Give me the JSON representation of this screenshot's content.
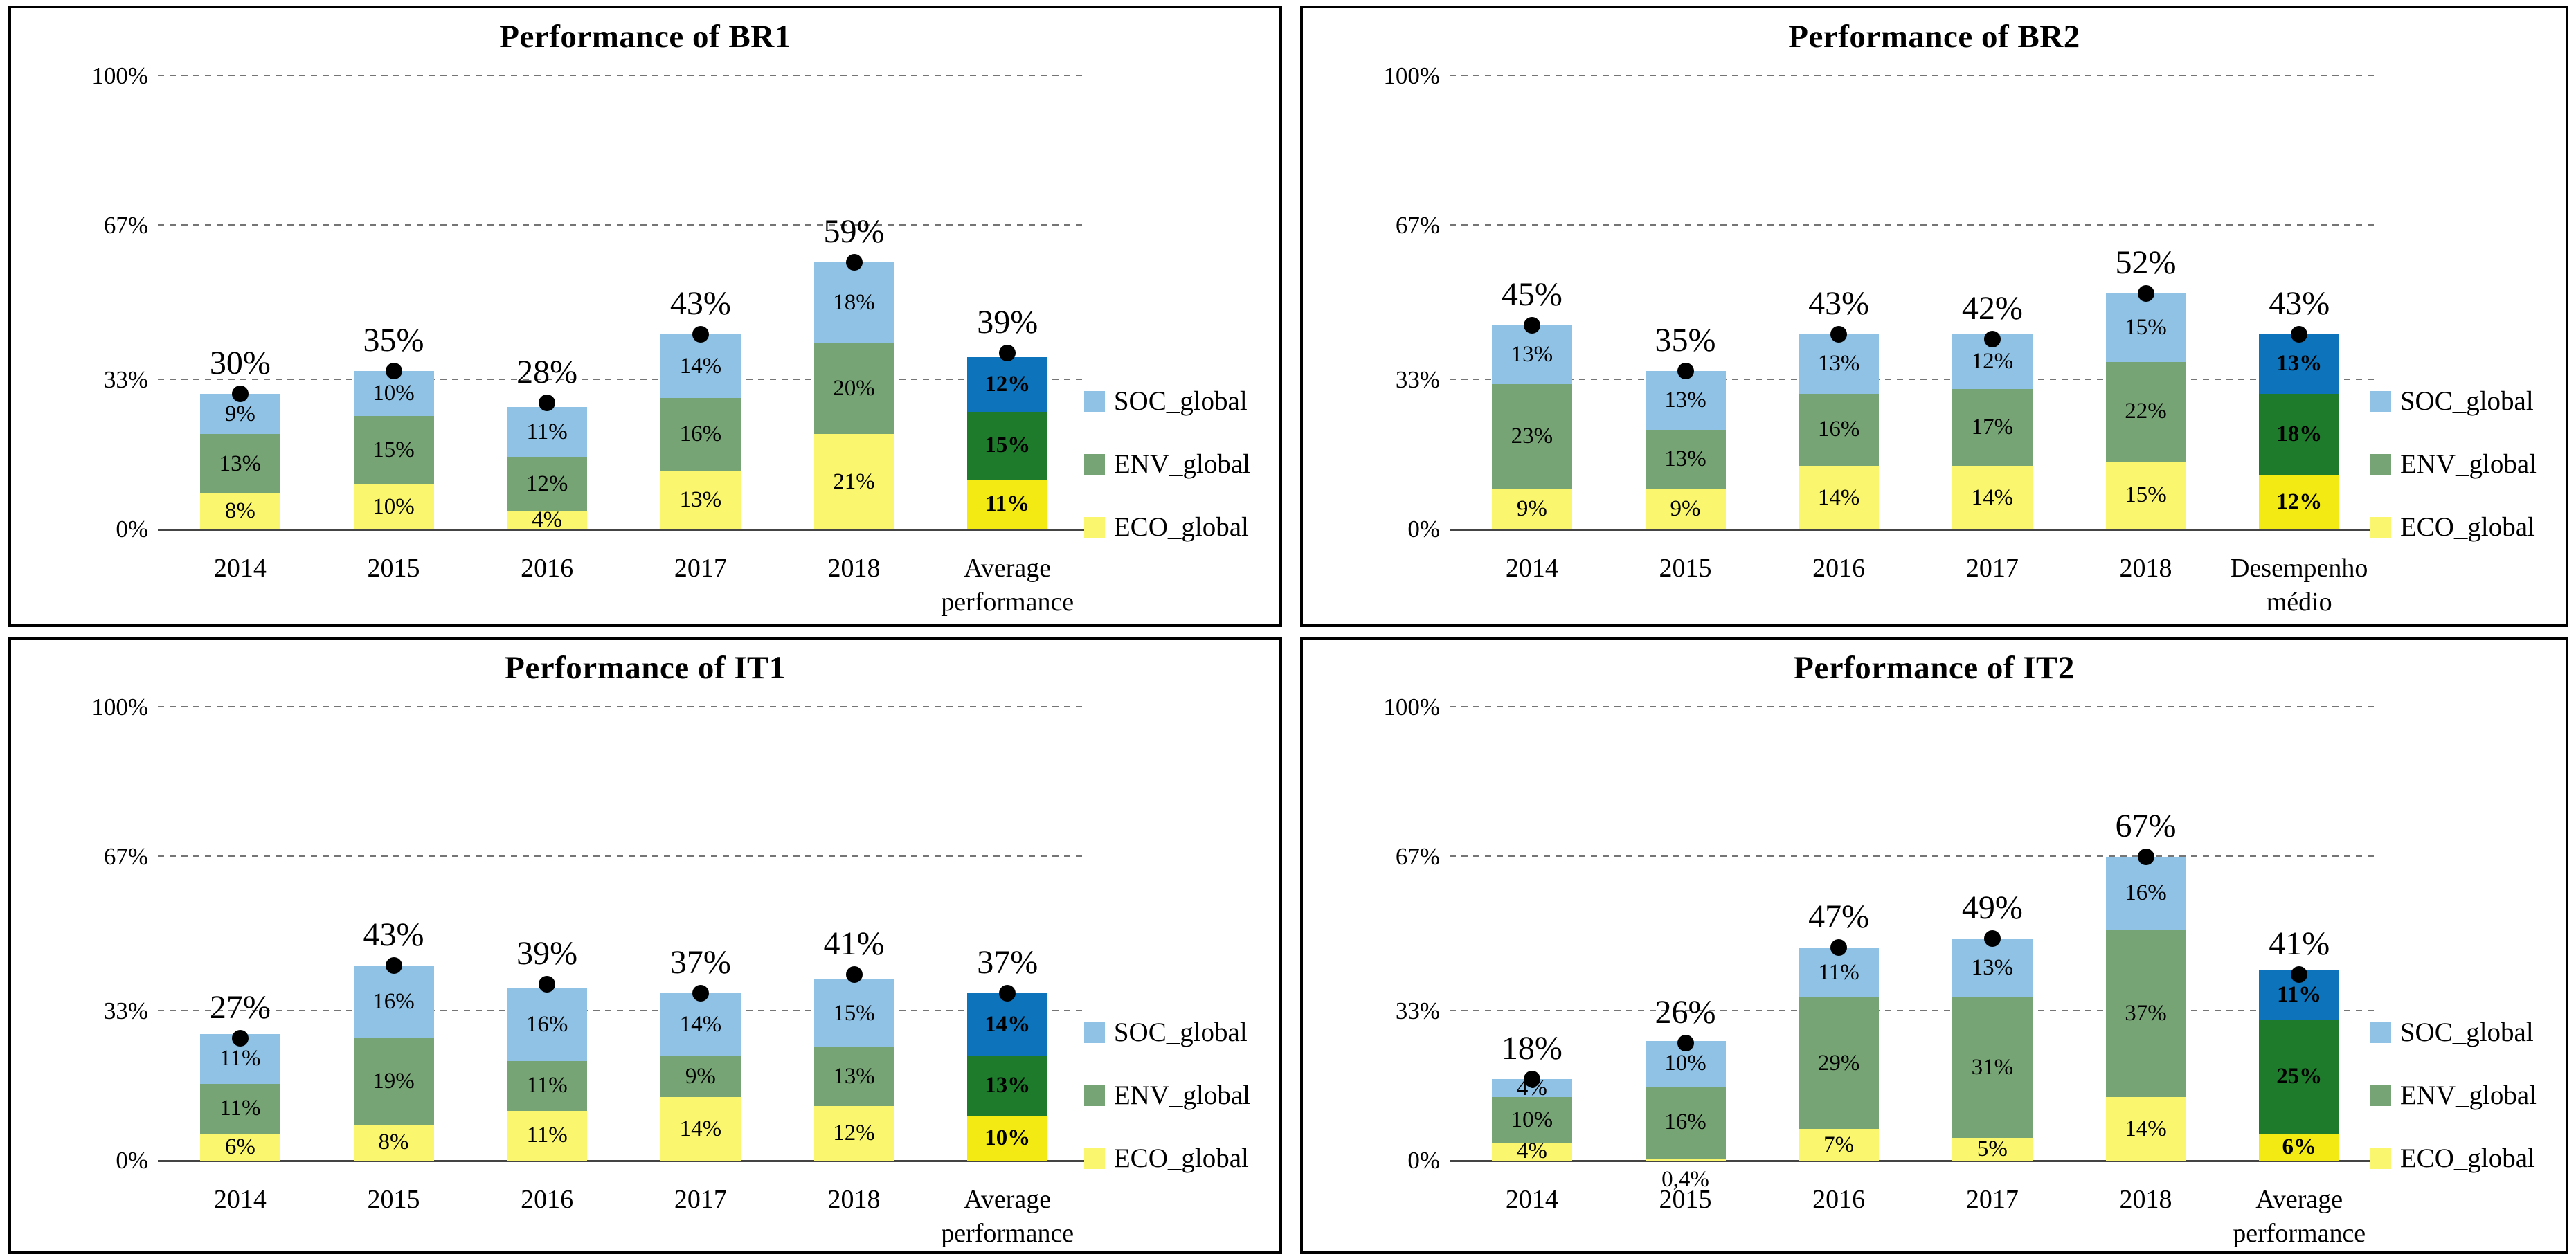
{
  "page": {
    "background": "#ffffff",
    "panel_border": "#000000"
  },
  "colors": {
    "soc_light": "#8FC2E4",
    "env_light": "#77A475",
    "eco_light": "#FAF76E",
    "soc_dark": "#0D73BB",
    "env_dark": "#1F7B2C",
    "eco_dark": "#F2EA12",
    "marker": "#000000",
    "gridline": "#757575",
    "axis": "#444444"
  },
  "chart_data": [
    {
      "type": "bar",
      "title": "Performance of BR1",
      "stacked": true,
      "ylim": [
        0,
        100
      ],
      "grid": "horizontal-dashed",
      "legend_position": "right",
      "y_ticks": [
        {
          "label": "0%",
          "value": 0
        },
        {
          "label": "33%",
          "value": 33
        },
        {
          "label": "67%",
          "value": 67
        },
        {
          "label": "100%",
          "value": 100
        }
      ],
      "categories": [
        "2014",
        "2015",
        "2016",
        "2017",
        "2018",
        "Average\nperformance"
      ],
      "series": [
        {
          "name": "ECO_global",
          "color": "#FAF76E",
          "color_avg": "#F2EA12",
          "values": [
            8,
            10,
            4,
            13,
            21,
            11
          ],
          "labels": [
            "8%",
            "10%",
            "4%",
            "13%",
            "21%",
            "11%"
          ]
        },
        {
          "name": "ENV_global",
          "color": "#77A475",
          "color_avg": "#1F7B2C",
          "values": [
            13,
            15,
            12,
            16,
            20,
            15
          ],
          "labels": [
            "13%",
            "15%",
            "12%",
            "16%",
            "20%",
            "15%"
          ]
        },
        {
          "name": "SOC_global",
          "color": "#8FC2E4",
          "color_avg": "#0D73BB",
          "values": [
            9,
            10,
            11,
            14,
            18,
            12
          ],
          "labels": [
            "9%",
            "10%",
            "11%",
            "14%",
            "18%",
            "12%"
          ]
        }
      ],
      "totals": {
        "values": [
          30,
          35,
          28,
          43,
          59,
          39
        ],
        "labels": [
          "30%",
          "35%",
          "28%",
          "43%",
          "59%",
          "39%"
        ]
      },
      "legend": [
        {
          "label": "SOC_global",
          "color": "#8FC2E4"
        },
        {
          "label": "ENV_global",
          "color": "#77A475"
        },
        {
          "label": "ECO_global",
          "color": "#FAF76E"
        }
      ]
    },
    {
      "type": "bar",
      "title": "Performance of BR2",
      "stacked": true,
      "ylim": [
        0,
        100
      ],
      "grid": "horizontal-dashed",
      "legend_position": "right",
      "y_ticks": [
        {
          "label": "0%",
          "value": 0
        },
        {
          "label": "33%",
          "value": 33
        },
        {
          "label": "67%",
          "value": 67
        },
        {
          "label": "100%",
          "value": 100
        }
      ],
      "categories": [
        "2014",
        "2015",
        "2016",
        "2017",
        "2018",
        "Desempenho\nmédio"
      ],
      "series": [
        {
          "name": "ECO_global",
          "color": "#FAF76E",
          "color_avg": "#F2EA12",
          "values": [
            9,
            9,
            14,
            14,
            15,
            12
          ],
          "labels": [
            "9%",
            "9%",
            "14%",
            "14%",
            "15%",
            "12%"
          ]
        },
        {
          "name": "ENV_global",
          "color": "#77A475",
          "color_avg": "#1F7B2C",
          "values": [
            23,
            13,
            16,
            17,
            22,
            18
          ],
          "labels": [
            "23%",
            "13%",
            "16%",
            "17%",
            "22%",
            "18%"
          ]
        },
        {
          "name": "SOC_global",
          "color": "#8FC2E4",
          "color_avg": "#0D73BB",
          "values": [
            13,
            13,
            13,
            12,
            15,
            13
          ],
          "labels": [
            "13%",
            "13%",
            "13%",
            "12%",
            "15%",
            "13%"
          ]
        }
      ],
      "totals": {
        "values": [
          45,
          35,
          43,
          42,
          52,
          43
        ],
        "labels": [
          "45%",
          "35%",
          "43%",
          "42%",
          "52%",
          "43%"
        ]
      },
      "legend": [
        {
          "label": "SOC_global",
          "color": "#8FC2E4"
        },
        {
          "label": "ENV_global",
          "color": "#77A475"
        },
        {
          "label": "ECO_global",
          "color": "#FAF76E"
        }
      ]
    },
    {
      "type": "bar",
      "title": "Performance of IT1",
      "stacked": true,
      "ylim": [
        0,
        100
      ],
      "grid": "horizontal-dashed",
      "legend_position": "right",
      "y_ticks": [
        {
          "label": "0%",
          "value": 0
        },
        {
          "label": "33%",
          "value": 33
        },
        {
          "label": "67%",
          "value": 67
        },
        {
          "label": "100%",
          "value": 100
        }
      ],
      "categories": [
        "2014",
        "2015",
        "2016",
        "2017",
        "2018",
        "Average\nperformance"
      ],
      "series": [
        {
          "name": "ECO_global",
          "color": "#FAF76E",
          "color_avg": "#F2EA12",
          "values": [
            6,
            8,
            11,
            14,
            12,
            10
          ],
          "labels": [
            "6%",
            "8%",
            "11%",
            "14%",
            "12%",
            "10%"
          ]
        },
        {
          "name": "ENV_global",
          "color": "#77A475",
          "color_avg": "#1F7B2C",
          "values": [
            11,
            19,
            11,
            9,
            13,
            13
          ],
          "labels": [
            "11%",
            "19%",
            "11%",
            "9%",
            "13%",
            "13%"
          ]
        },
        {
          "name": "SOC_global",
          "color": "#8FC2E4",
          "color_avg": "#0D73BB",
          "values": [
            11,
            16,
            16,
            14,
            15,
            14
          ],
          "labels": [
            "11%",
            "16%",
            "16%",
            "14%",
            "15%",
            "14%"
          ]
        }
      ],
      "totals": {
        "values": [
          27,
          43,
          39,
          37,
          41,
          37
        ],
        "labels": [
          "27%",
          "43%",
          "39%",
          "37%",
          "41%",
          "37%"
        ]
      },
      "legend": [
        {
          "label": "SOC_global",
          "color": "#8FC2E4"
        },
        {
          "label": "ENV_global",
          "color": "#77A475"
        },
        {
          "label": "ECO_global",
          "color": "#FAF76E"
        }
      ]
    },
    {
      "type": "bar",
      "title": "Performance of IT2",
      "stacked": true,
      "ylim": [
        0,
        100
      ],
      "grid": "horizontal-dashed",
      "legend_position": "right",
      "y_ticks": [
        {
          "label": "0%",
          "value": 0
        },
        {
          "label": "33%",
          "value": 33
        },
        {
          "label": "67%",
          "value": 67
        },
        {
          "label": "100%",
          "value": 100
        }
      ],
      "categories": [
        "2014",
        "2015",
        "2016",
        "2017",
        "2018",
        "Average\nperformance"
      ],
      "series": [
        {
          "name": "ECO_global",
          "color": "#FAF76E",
          "color_avg": "#F2EA12",
          "values": [
            4,
            0.4,
            7,
            5,
            14,
            6
          ],
          "labels": [
            "4%",
            "0,4%",
            "7%",
            "5%",
            "14%",
            "6%"
          ]
        },
        {
          "name": "ENV_global",
          "color": "#77A475",
          "color_avg": "#1F7B2C",
          "values": [
            10,
            16,
            29,
            31,
            37,
            25
          ],
          "labels": [
            "10%",
            "16%",
            "29%",
            "31%",
            "37%",
            "25%"
          ]
        },
        {
          "name": "SOC_global",
          "color": "#8FC2E4",
          "color_avg": "#0D73BB",
          "values": [
            4,
            10,
            11,
            13,
            16,
            11
          ],
          "labels": [
            "4%",
            "10%",
            "11%",
            "13%",
            "16%",
            "11%"
          ]
        }
      ],
      "totals": {
        "values": [
          18,
          26,
          47,
          49,
          67,
          41
        ],
        "labels": [
          "18%",
          "26%",
          "47%",
          "49%",
          "67%",
          "41%"
        ]
      },
      "legend": [
        {
          "label": "SOC_global",
          "color": "#8FC2E4"
        },
        {
          "label": "ENV_global",
          "color": "#77A475"
        },
        {
          "label": "ECO_global",
          "color": "#FAF76E"
        }
      ]
    }
  ]
}
